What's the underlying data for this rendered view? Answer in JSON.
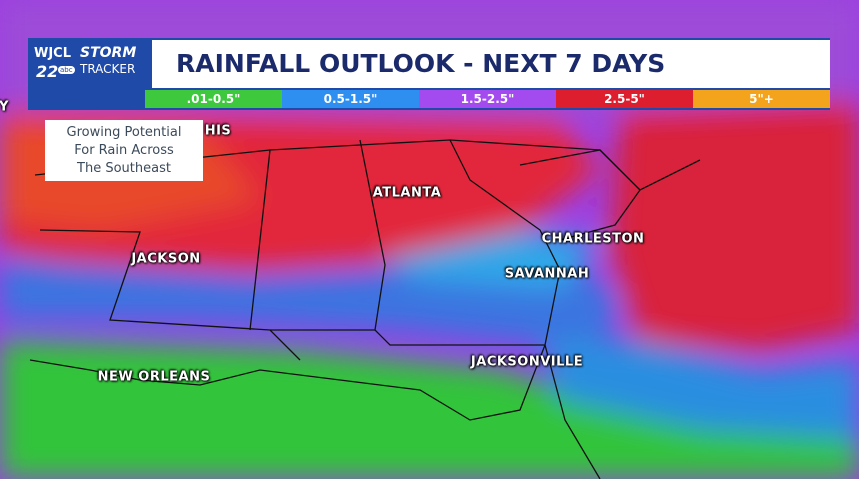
{
  "logo": {
    "station": "WJCL",
    "channel": "22",
    "network": "abc",
    "brand_top": "STORM",
    "brand_bottom": "TRACKER"
  },
  "title": "RAINFALL OUTLOOK - NEXT 7 DAYS",
  "legend": [
    {
      "label": ".01-0.5\"",
      "color": "#3ec83e"
    },
    {
      "label": "0.5-1.5\"",
      "color": "#2f8ff0"
    },
    {
      "label": "1.5-2.5\"",
      "color": "#a44bf0"
    },
    {
      "label": "2.5-5\"",
      "color": "#dc1e2e"
    },
    {
      "label": "5\"+",
      "color": "#f4a41c"
    }
  ],
  "note": [
    "Growing Potential",
    "For Rain Across",
    "The Southeast"
  ],
  "cities": [
    {
      "name": "Y"
    },
    {
      "name": "HIS"
    },
    {
      "name": "ATLANTA"
    },
    {
      "name": "CHARLESTON"
    },
    {
      "name": "SAVANNAH"
    },
    {
      "name": "JACKSON"
    },
    {
      "name": "NEW ORLEANS"
    },
    {
      "name": "JACKSONVILLE"
    }
  ]
}
